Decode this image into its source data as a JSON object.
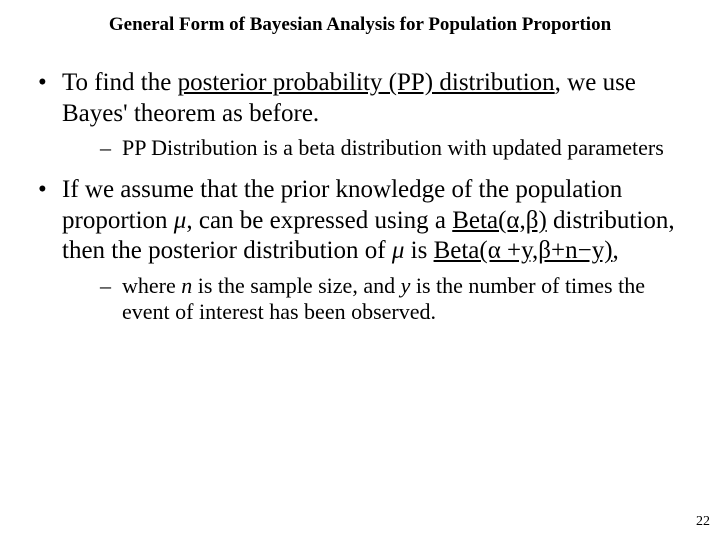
{
  "title": "General Form of Bayesian Analysis for Population Proportion",
  "bullets": {
    "b1": {
      "pre": "To find the ",
      "u": "posterior probability (PP) distribution",
      "post": ", we use Bayes' theorem as before.",
      "sub1": "PP Distribution is a beta distribution with updated parameters"
    },
    "b2": {
      "t1": "If we assume that the prior knowledge of the population proportion ",
      "mu1": "μ",
      "t2": ", can be expressed using a ",
      "beta1": "Beta(α,β)",
      "t3": " distribution, then the posterior distribution of ",
      "mu2": "μ",
      "t4": " is ",
      "beta2": "Beta(α +y,β+n−y)",
      "t5": ",",
      "sub_t1": "where ",
      "sub_n": "n",
      "sub_t2": " is the sample size, and ",
      "sub_y": "y",
      "sub_t3": " is the number of times the event of interest has been observed."
    }
  },
  "page_number": "22",
  "colors": {
    "text": "#000000",
    "background": "#ffffff"
  },
  "fonts": {
    "family": "Times New Roman",
    "title_size_pt": 19,
    "body_size_pt": 25,
    "sub_size_pt": 22,
    "pagenum_size_pt": 14
  }
}
